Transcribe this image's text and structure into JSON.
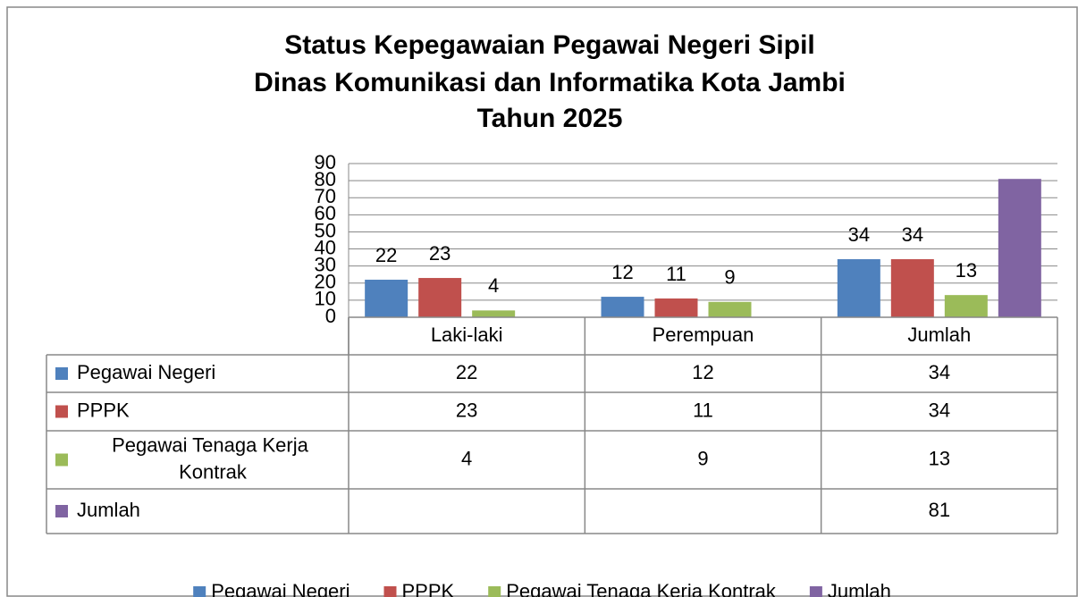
{
  "chart_data": {
    "type": "bar",
    "title": [
      "Status Kepegawaian Pegawai Negeri Sipil",
      "Dinas Komunikasi dan Informatika Kota Jambi",
      "Tahun 2025"
    ],
    "categories": [
      "Laki-laki",
      "Perempuan",
      "Jumlah"
    ],
    "series": [
      {
        "name": "Pegawai Negeri",
        "color": "#4f81bd",
        "values": [
          22,
          12,
          34
        ],
        "show_labels": true
      },
      {
        "name": "PPPK",
        "color": "#c0504d",
        "values": [
          23,
          11,
          34
        ],
        "show_labels": true
      },
      {
        "name": "Pegawai Tenaga Kerja Kontrak",
        "color": "#9bbb59",
        "values": [
          4,
          9,
          13
        ],
        "show_labels": true
      },
      {
        "name": "Jumlah",
        "color": "#8064a2",
        "values": [
          null,
          null,
          81
        ],
        "show_labels": false
      }
    ],
    "ylim": [
      0,
      90
    ],
    "yticks": [
      0,
      10,
      20,
      30,
      40,
      50,
      60,
      70,
      80,
      90
    ],
    "grid": true,
    "data_table": true,
    "legend": "bottom"
  }
}
